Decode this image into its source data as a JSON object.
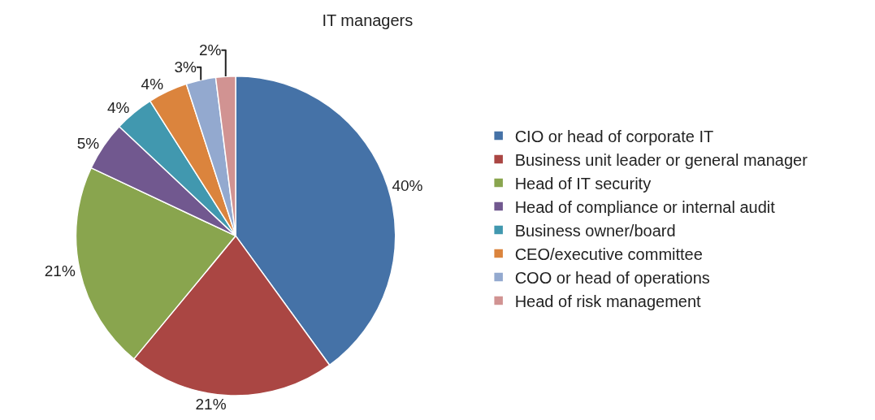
{
  "chart_data": {
    "type": "pie",
    "title": "IT managers",
    "categories": [
      "CIO or head of corporate IT",
      "Business unit leader or general manager",
      "Head of IT security",
      "Head of compliance or internal audit",
      "Business owner/board",
      "CEO/executive committee",
      "COO or head of operations",
      "Head of risk management"
    ],
    "values": [
      40,
      21,
      21,
      5,
      4,
      4,
      3,
      2
    ],
    "colors": [
      "#4572a7",
      "#aa4643",
      "#89a54e",
      "#71588f",
      "#4198af",
      "#db843d",
      "#93a9cf",
      "#d19392"
    ],
    "value_labels": [
      "40%",
      "21%",
      "21%",
      "5%",
      "4%",
      "4%",
      "3%",
      "2%"
    ],
    "legend": "right"
  }
}
